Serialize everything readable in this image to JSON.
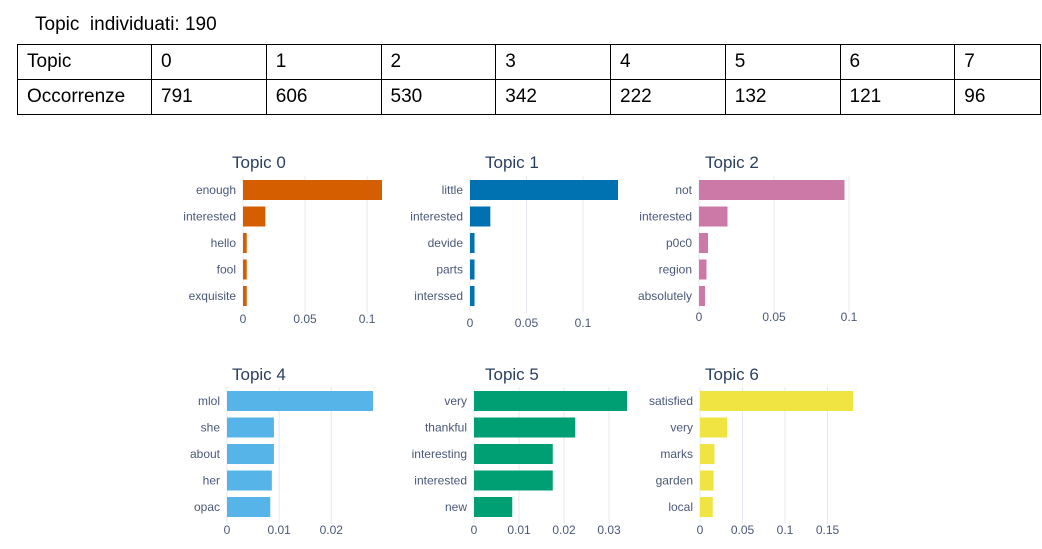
{
  "header": {
    "label": "Topic  individuati:",
    "value": "190"
  },
  "table": {
    "rows": [
      {
        "label": "Topic",
        "cells": [
          "0",
          "1",
          "2",
          "3",
          "4",
          "5",
          "6",
          "7"
        ]
      },
      {
        "label": "Occorrenze",
        "cells": [
          "791",
          "606",
          "530",
          "342",
          "222",
          "132",
          "121",
          "96"
        ]
      }
    ]
  },
  "chart_data": [
    {
      "type": "bar",
      "orientation": "horizontal",
      "title": "Topic 0",
      "color": "#d55e00",
      "categories": [
        "enough",
        "interested",
        "hello",
        "fool",
        "exquisite"
      ],
      "values": [
        0.112,
        0.018,
        0.003,
        0.003,
        0.003
      ],
      "xlim": [
        0,
        0.112
      ],
      "xticks": [
        0,
        0.05,
        0.1
      ],
      "xtick_labels": [
        "0",
        "0.05",
        "0.1"
      ]
    },
    {
      "type": "bar",
      "orientation": "horizontal",
      "title": "Topic 1",
      "color": "#0072b2",
      "categories": [
        "little",
        "interested",
        "devide",
        "parts",
        "interssed"
      ],
      "values": [
        0.131,
        0.018,
        0.004,
        0.004,
        0.004
      ],
      "xlim": [
        0,
        0.131
      ],
      "xticks": [
        0,
        0.05,
        0.1
      ],
      "xtick_labels": [
        "0",
        "0.05",
        "0.1"
      ]
    },
    {
      "type": "bar",
      "orientation": "horizontal",
      "title": "Topic 2",
      "color": "#cc79a7",
      "categories": [
        "not",
        "interested",
        "p0c0",
        "region",
        "absolutely"
      ],
      "values": [
        0.097,
        0.019,
        0.006,
        0.005,
        0.004
      ],
      "xlim": [
        0,
        0.1
      ],
      "xticks": [
        0,
        0.05,
        0.1
      ],
      "xtick_labels": [
        "0",
        "0.05",
        "0.1"
      ]
    },
    {
      "type": "bar",
      "orientation": "horizontal",
      "title": "Topic 4",
      "color": "#56b4e9",
      "categories": [
        "mlol",
        "she",
        "about",
        "her",
        "opac"
      ],
      "values": [
        0.028,
        0.009,
        0.009,
        0.0086,
        0.0083
      ],
      "xlim": [
        0,
        0.028
      ],
      "xticks": [
        0,
        0.01,
        0.02
      ],
      "xtick_labels": [
        "0",
        "0.01",
        "0.02"
      ]
    },
    {
      "type": "bar",
      "orientation": "horizontal",
      "title": "Topic 5",
      "color": "#009e73",
      "categories": [
        "very",
        "thankful",
        "interesting",
        "interested",
        "new"
      ],
      "values": [
        0.034,
        0.0225,
        0.0175,
        0.0175,
        0.0085
      ],
      "xlim": [
        0,
        0.034
      ],
      "xticks": [
        0,
        0.01,
        0.02,
        0.03
      ],
      "xtick_labels": [
        "0",
        "0.01",
        "0.02",
        "0.03"
      ]
    },
    {
      "type": "bar",
      "orientation": "horizontal",
      "title": "Topic 6",
      "color": "#f0e442",
      "categories": [
        "satisfied",
        "very",
        "marks",
        "garden",
        "local"
      ],
      "values": [
        0.18,
        0.032,
        0.017,
        0.016,
        0.015
      ],
      "xlim": [
        0,
        0.18
      ],
      "xticks": [
        0,
        0.05,
        0.1,
        0.15
      ],
      "xtick_labels": [
        "0",
        "0.05",
        "0.1",
        "0.15"
      ]
    }
  ]
}
